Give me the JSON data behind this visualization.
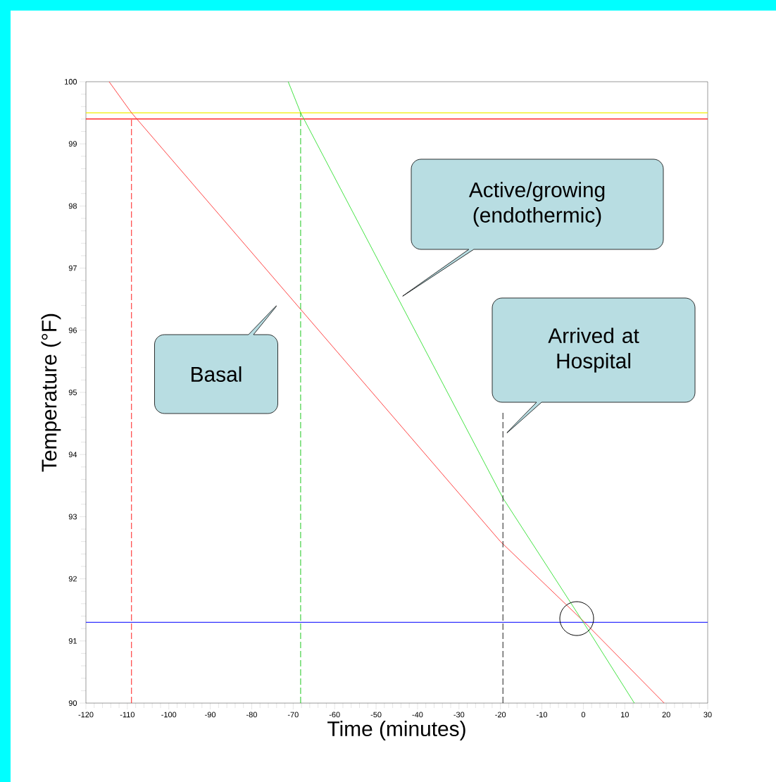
{
  "chart_data": {
    "type": "line",
    "xlabel": "Time (minutes)",
    "ylabel": "Temperature (°F)",
    "xlim": [
      -120,
      30
    ],
    "ylim": [
      90,
      100
    ],
    "xticks": [
      -120,
      -110,
      -100,
      -90,
      -80,
      -70,
      -60,
      -50,
      -40,
      -30,
      -20,
      -10,
      0,
      10,
      20,
      30
    ],
    "yticks": [
      90,
      91,
      92,
      93,
      94,
      95,
      96,
      97,
      98,
      99,
      100
    ],
    "marker": "none",
    "series": [
      {
        "color": "#ff3030",
        "line_style": "solid",
        "x": [
          -114.4,
          -109,
          -20,
          0.3,
          19.5
        ],
        "values": [
          100,
          99.5,
          92.6,
          91.3,
          90
        ]
      },
      {
        "color": "#30e030",
        "line_style": "solid",
        "x": [
          -71.2,
          -68.2,
          -19.4,
          0,
          12.3
        ],
        "values": [
          100,
          99.5,
          93.3,
          91.3,
          90
        ]
      },
      {
        "color": "#ff0000",
        "line_style": "dashed",
        "x": [
          -109,
          -109
        ],
        "values": [
          90,
          99.4
        ]
      },
      {
        "color": "#00c000",
        "line_style": "dashed",
        "x": [
          -68.2,
          -68.2
        ],
        "values": [
          90,
          99.5
        ]
      },
      {
        "color": "#000000",
        "line_style": "dashed",
        "x": [
          -19.4,
          -19.4
        ],
        "values": [
          90,
          94.7
        ]
      }
    ],
    "ref_lines": [
      {
        "axis": "y",
        "value": 99.5,
        "color": "#f0f000"
      },
      {
        "axis": "y",
        "value": 99.4,
        "color": "#ff0000"
      },
      {
        "axis": "y",
        "value": 91.3,
        "color": "#3030ff"
      }
    ],
    "annotations": [
      "Basal",
      "Active/growing (endothermic)",
      "Arrived at Hospital"
    ]
  }
}
